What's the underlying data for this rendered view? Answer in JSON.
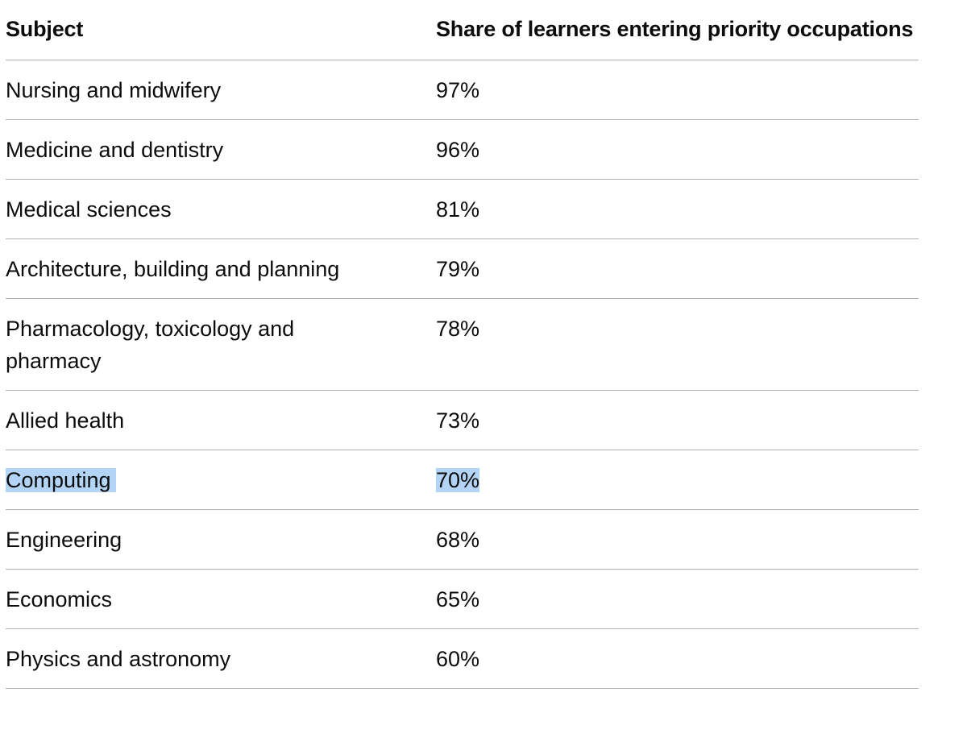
{
  "table": {
    "headers": {
      "subject": "Subject",
      "share": "Share of learners entering priority occupations"
    },
    "rows": [
      {
        "subject": "Nursing and midwifery",
        "share": "97%",
        "selected": false
      },
      {
        "subject": "Medicine and dentistry",
        "share": "96%",
        "selected": false
      },
      {
        "subject": "Medical sciences",
        "share": "81%",
        "selected": false
      },
      {
        "subject": "Architecture, building and planning",
        "share": "79%",
        "selected": false
      },
      {
        "subject": "Pharmacology, toxicology and pharmacy",
        "share": "78%",
        "selected": false
      },
      {
        "subject": "Allied health",
        "share": "73%",
        "selected": false
      },
      {
        "subject": "Computing",
        "share": "70%",
        "selected": true
      },
      {
        "subject": "Engineering",
        "share": "68%",
        "selected": false
      },
      {
        "subject": "Economics",
        "share": "65%",
        "selected": false
      },
      {
        "subject": "Physics and astronomy",
        "share": "60%",
        "selected": false
      }
    ]
  },
  "colors": {
    "text": "#0b0c0c",
    "border": "#b1b4b6",
    "selection": "#b4d4f6"
  }
}
